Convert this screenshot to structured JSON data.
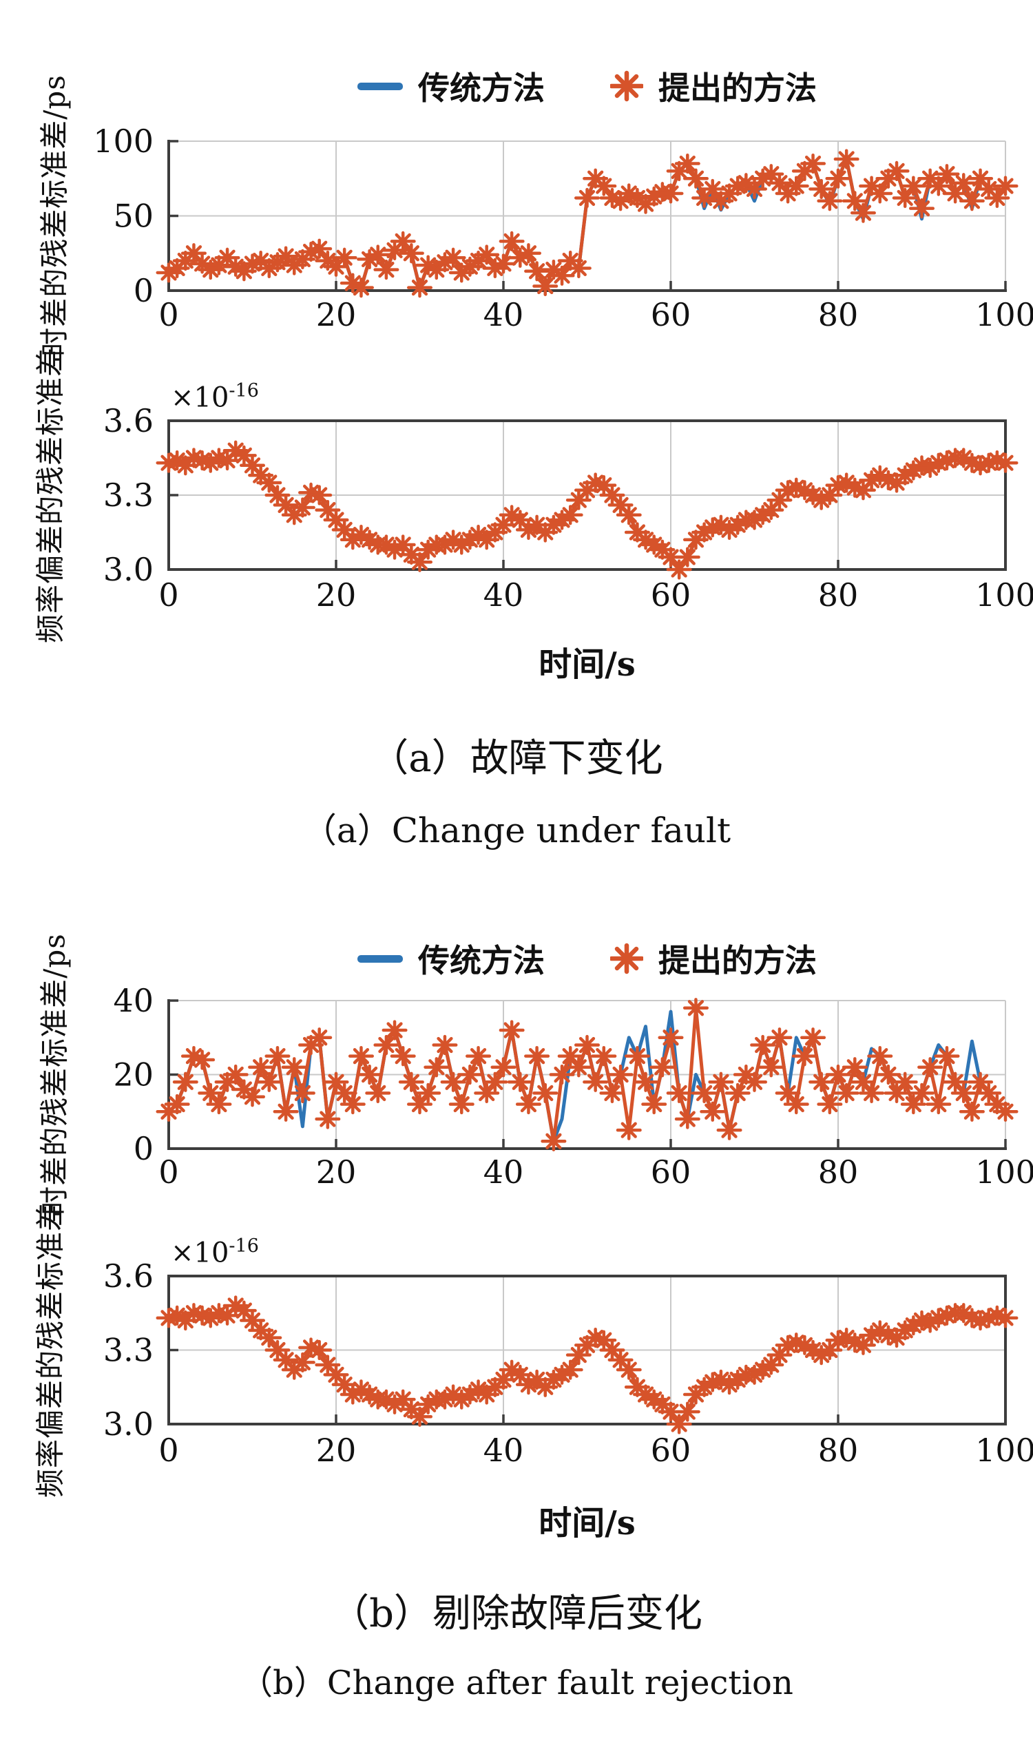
{
  "colors": {
    "traditional": "#2e75b5",
    "proposed": "#d6532a",
    "axis": "#3d3d3d",
    "grid": "#c9c9c9",
    "text": "#111111",
    "background": "#ffffff"
  },
  "legend": {
    "position": "top-center",
    "items": [
      {
        "label": "传统方法",
        "marker": "line"
      },
      {
        "label": "提出的方法",
        "marker": "asterisk"
      }
    ]
  },
  "figure_a": {
    "xlabel": "时间/s",
    "caption_zh": "（a）故障下变化",
    "caption_en": "（a）Change under fault"
  },
  "figure_b": {
    "xlabel": "时间/s",
    "caption_zh": "（b）剔除故障后变化",
    "caption_en": "（b）Change after fault rejection"
  },
  "chart_data": [
    {
      "type": "line",
      "figure": "a",
      "title": "",
      "xlabel": "时间/s",
      "ylabel": "时差的残差标准差/ps",
      "xlim": [
        0,
        100
      ],
      "ylim": [
        0,
        100
      ],
      "xticks": [
        0,
        20,
        40,
        60,
        80,
        100
      ],
      "xtick_labels": [
        "0",
        "20",
        "40",
        "60",
        "80",
        "100"
      ],
      "yticks": [
        0,
        50,
        100
      ],
      "ytick_labels": [
        "0",
        "50",
        "100"
      ],
      "grid": true,
      "x_start": 0,
      "x_step": 1,
      "layout": {
        "box_top": 35,
        "box_bottom": 252,
        "xlabel_row_y": 303,
        "spines": "lb",
        "xgrid": [
          20,
          40,
          60,
          80,
          100
        ],
        "ygrid": [
          50,
          100
        ]
      },
      "series": [
        {
          "name": "传统方法",
          "style": "line",
          "color_key": "traditional",
          "values": [
            12,
            15,
            20,
            25,
            18,
            14,
            17,
            22,
            16,
            13,
            18,
            20,
            15,
            19,
            23,
            17,
            21,
            26,
            28,
            20,
            16,
            22,
            5,
            2,
            21,
            24,
            14,
            27,
            33,
            25,
            2,
            17,
            14,
            19,
            22,
            12,
            16,
            20,
            24,
            15,
            18,
            33,
            22,
            25,
            13,
            3,
            14,
            10,
            20,
            15,
            62,
            75,
            70,
            62,
            60,
            65,
            62,
            58,
            63,
            66,
            65,
            80,
            85,
            75,
            55,
            68,
            54,
            65,
            70,
            72,
            60,
            75,
            78,
            72,
            65,
            70,
            80,
            85,
            68,
            58,
            75,
            88,
            60,
            48,
            70,
            65,
            75,
            80,
            62,
            70,
            48,
            75,
            70,
            78,
            65,
            72,
            55,
            75,
            68,
            62,
            70
          ]
        },
        {
          "name": "提出的方法",
          "style": "line+asterisk",
          "color_key": "proposed",
          "values": [
            12,
            15,
            20,
            25,
            18,
            14,
            17,
            22,
            16,
            13,
            18,
            20,
            15,
            19,
            23,
            17,
            21,
            26,
            28,
            20,
            16,
            22,
            5,
            2,
            21,
            24,
            14,
            27,
            33,
            25,
            2,
            17,
            14,
            19,
            22,
            12,
            16,
            20,
            24,
            15,
            18,
            33,
            22,
            25,
            13,
            3,
            14,
            10,
            20,
            15,
            62,
            75,
            70,
            62,
            60,
            65,
            62,
            58,
            63,
            66,
            65,
            80,
            85,
            75,
            62,
            68,
            60,
            65,
            70,
            72,
            68,
            75,
            78,
            72,
            65,
            70,
            80,
            85,
            68,
            60,
            75,
            88,
            60,
            52,
            70,
            65,
            75,
            80,
            62,
            70,
            55,
            75,
            70,
            78,
            65,
            72,
            60,
            75,
            68,
            62,
            70
          ]
        }
      ]
    },
    {
      "type": "line",
      "figure": "a",
      "title": "",
      "xlabel": "时间/s",
      "ylabel": "频率偏差的残差标准差",
      "scale_base": "×10",
      "scale_exp": "-16",
      "xlim": [
        0,
        100
      ],
      "ylim": [
        3.0,
        3.6
      ],
      "xticks": [
        0,
        20,
        40,
        60,
        80,
        100
      ],
      "xtick_labels": [
        "0",
        "20",
        "40",
        "60",
        "80",
        "100"
      ],
      "yticks": [
        3.0,
        3.3,
        3.6
      ],
      "ytick_labels": [
        "3.0",
        "3.3",
        "3.6"
      ],
      "grid": true,
      "x_start": 0,
      "x_step": 1,
      "layout": {
        "box_top": 61,
        "box_bottom": 277,
        "xlabel_row_y": 330,
        "spines": "box",
        "xgrid": [
          20,
          40,
          60,
          80
        ],
        "ygrid": [
          3.3
        ]
      },
      "series": [
        {
          "name": "传统方法",
          "style": "line",
          "color_key": "traditional",
          "values": [
            3.43,
            3.44,
            3.42,
            3.45,
            3.44,
            3.43,
            3.45,
            3.44,
            3.48,
            3.46,
            3.42,
            3.38,
            3.35,
            3.3,
            3.26,
            3.22,
            3.25,
            3.31,
            3.3,
            3.24,
            3.2,
            3.16,
            3.12,
            3.14,
            3.12,
            3.1,
            3.1,
            3.08,
            3.1,
            3.06,
            3.03,
            3.08,
            3.1,
            3.1,
            3.12,
            3.1,
            3.12,
            3.14,
            3.12,
            3.15,
            3.18,
            3.22,
            3.2,
            3.16,
            3.18,
            3.15,
            3.18,
            3.2,
            3.22,
            3.28,
            3.32,
            3.35,
            3.34,
            3.3,
            3.26,
            3.22,
            3.15,
            3.12,
            3.1,
            3.08,
            3.05,
            3.0,
            3.05,
            3.12,
            3.15,
            3.17,
            3.18,
            3.16,
            3.18,
            3.2,
            3.2,
            3.22,
            3.24,
            3.28,
            3.32,
            3.33,
            3.32,
            3.3,
            3.28,
            3.3,
            3.34,
            3.35,
            3.33,
            3.32,
            3.36,
            3.38,
            3.36,
            3.35,
            3.38,
            3.4,
            3.42,
            3.41,
            3.43,
            3.44,
            3.45,
            3.45,
            3.43,
            3.42,
            3.43,
            3.44,
            3.43
          ]
        },
        {
          "name": "提出的方法",
          "style": "line+asterisk",
          "color_key": "proposed",
          "values": [
            3.43,
            3.44,
            3.42,
            3.45,
            3.44,
            3.43,
            3.45,
            3.44,
            3.48,
            3.46,
            3.42,
            3.38,
            3.35,
            3.3,
            3.26,
            3.22,
            3.25,
            3.31,
            3.3,
            3.24,
            3.2,
            3.16,
            3.12,
            3.14,
            3.12,
            3.1,
            3.1,
            3.08,
            3.1,
            3.06,
            3.03,
            3.08,
            3.1,
            3.1,
            3.12,
            3.1,
            3.12,
            3.14,
            3.12,
            3.15,
            3.18,
            3.22,
            3.2,
            3.16,
            3.18,
            3.15,
            3.18,
            3.2,
            3.22,
            3.28,
            3.32,
            3.35,
            3.34,
            3.3,
            3.26,
            3.22,
            3.15,
            3.12,
            3.1,
            3.08,
            3.05,
            3.0,
            3.05,
            3.12,
            3.15,
            3.17,
            3.18,
            3.16,
            3.18,
            3.2,
            3.2,
            3.22,
            3.24,
            3.28,
            3.32,
            3.33,
            3.32,
            3.3,
            3.28,
            3.3,
            3.34,
            3.35,
            3.33,
            3.32,
            3.36,
            3.38,
            3.36,
            3.35,
            3.38,
            3.4,
            3.42,
            3.41,
            3.43,
            3.44,
            3.45,
            3.45,
            3.43,
            3.42,
            3.43,
            3.44,
            3.43
          ]
        }
      ]
    },
    {
      "type": "line",
      "figure": "b",
      "title": "",
      "xlabel": "时间/s",
      "ylabel": "时差的残差标准差/ps",
      "xlim": [
        0,
        100
      ],
      "ylim": [
        0,
        40
      ],
      "xticks": [
        0,
        20,
        40,
        60,
        80,
        100
      ],
      "xtick_labels": [
        "0",
        "20",
        "40",
        "60",
        "80",
        "100"
      ],
      "yticks": [
        0,
        20,
        40
      ],
      "ytick_labels": [
        "0",
        "20",
        "40"
      ],
      "grid": true,
      "x_start": 0,
      "x_step": 1,
      "layout": {
        "box_top": 35,
        "box_bottom": 250,
        "xlabel_row_y": 300,
        "spines": "lb",
        "xgrid": [
          20,
          40,
          60,
          80,
          100
        ],
        "ygrid": [
          20,
          40
        ]
      },
      "series": [
        {
          "name": "传统方法",
          "style": "line",
          "color_key": "traditional",
          "values": [
            10,
            12,
            18,
            25,
            24,
            15,
            12,
            18,
            20,
            16,
            14,
            22,
            18,
            25,
            10,
            22,
            6,
            28,
            30,
            8,
            18,
            15,
            12,
            25,
            20,
            15,
            28,
            32,
            25,
            18,
            12,
            15,
            22,
            28,
            18,
            12,
            20,
            25,
            15,
            18,
            22,
            32,
            18,
            12,
            25,
            15,
            2,
            8,
            25,
            22,
            28,
            18,
            25,
            15,
            20,
            30,
            25,
            33,
            12,
            22,
            37,
            15,
            8,
            20,
            15,
            10,
            18,
            5,
            15,
            20,
            18,
            28,
            22,
            30,
            15,
            30,
            25,
            30,
            18,
            12,
            20,
            15,
            22,
            18,
            27,
            25,
            20,
            15,
            18,
            12,
            15,
            22,
            28,
            25,
            18,
            15,
            29,
            18,
            15,
            12,
            10
          ]
        },
        {
          "name": "提出的方法",
          "style": "line+asterisk",
          "color_key": "proposed",
          "values": [
            10,
            12,
            18,
            25,
            24,
            15,
            12,
            18,
            20,
            16,
            14,
            22,
            18,
            25,
            10,
            22,
            15,
            28,
            30,
            8,
            18,
            15,
            12,
            25,
            20,
            15,
            28,
            32,
            25,
            18,
            12,
            15,
            22,
            28,
            18,
            12,
            20,
            25,
            15,
            18,
            22,
            32,
            18,
            12,
            25,
            15,
            2,
            20,
            25,
            22,
            28,
            18,
            25,
            15,
            20,
            5,
            25,
            18,
            12,
            22,
            30,
            15,
            8,
            38,
            15,
            10,
            18,
            5,
            15,
            20,
            18,
            28,
            22,
            30,
            15,
            12,
            25,
            30,
            18,
            12,
            20,
            15,
            22,
            18,
            15,
            25,
            20,
            15,
            18,
            12,
            15,
            22,
            12,
            25,
            18,
            15,
            10,
            18,
            15,
            12,
            10
          ]
        }
      ]
    },
    {
      "type": "line",
      "figure": "b",
      "title": "",
      "xlabel": "时间/s",
      "ylabel": "频率偏差的残差标准差",
      "scale_base": "×10",
      "scale_exp": "-16",
      "xlim": [
        0,
        100
      ],
      "ylim": [
        3.0,
        3.6
      ],
      "xticks": [
        0,
        20,
        40,
        60,
        80,
        100
      ],
      "xtick_labels": [
        "0",
        "20",
        "40",
        "60",
        "80",
        "100"
      ],
      "yticks": [
        3.0,
        3.3,
        3.6
      ],
      "ytick_labels": [
        "3.0",
        "3.3",
        "3.6"
      ],
      "grid": true,
      "x_start": 0,
      "x_step": 1,
      "layout": {
        "box_top": 61,
        "box_bottom": 276,
        "xlabel_row_y": 330,
        "spines": "box",
        "xgrid": [
          20,
          40,
          60,
          80
        ],
        "ygrid": [
          3.3
        ]
      },
      "series": [
        {
          "name": "传统方法",
          "style": "line",
          "color_key": "traditional",
          "values": [
            3.43,
            3.44,
            3.42,
            3.45,
            3.44,
            3.43,
            3.45,
            3.44,
            3.48,
            3.46,
            3.42,
            3.38,
            3.35,
            3.3,
            3.26,
            3.22,
            3.25,
            3.31,
            3.3,
            3.24,
            3.2,
            3.16,
            3.12,
            3.14,
            3.12,
            3.1,
            3.1,
            3.08,
            3.1,
            3.06,
            3.03,
            3.08,
            3.1,
            3.1,
            3.12,
            3.1,
            3.12,
            3.14,
            3.12,
            3.15,
            3.18,
            3.22,
            3.2,
            3.16,
            3.18,
            3.15,
            3.18,
            3.2,
            3.22,
            3.28,
            3.32,
            3.35,
            3.34,
            3.3,
            3.26,
            3.22,
            3.15,
            3.12,
            3.1,
            3.08,
            3.05,
            3.0,
            3.05,
            3.12,
            3.15,
            3.17,
            3.18,
            3.16,
            3.18,
            3.2,
            3.2,
            3.22,
            3.24,
            3.28,
            3.32,
            3.33,
            3.32,
            3.3,
            3.28,
            3.3,
            3.34,
            3.35,
            3.33,
            3.32,
            3.36,
            3.38,
            3.36,
            3.35,
            3.38,
            3.4,
            3.42,
            3.41,
            3.43,
            3.44,
            3.45,
            3.45,
            3.43,
            3.42,
            3.43,
            3.44,
            3.43
          ]
        },
        {
          "name": "提出的方法",
          "style": "line+asterisk",
          "color_key": "proposed",
          "values": [
            3.43,
            3.44,
            3.42,
            3.45,
            3.44,
            3.43,
            3.45,
            3.44,
            3.48,
            3.46,
            3.42,
            3.38,
            3.35,
            3.3,
            3.26,
            3.22,
            3.25,
            3.31,
            3.3,
            3.24,
            3.2,
            3.16,
            3.12,
            3.14,
            3.12,
            3.1,
            3.1,
            3.08,
            3.1,
            3.06,
            3.03,
            3.08,
            3.1,
            3.1,
            3.12,
            3.1,
            3.12,
            3.14,
            3.12,
            3.15,
            3.18,
            3.22,
            3.2,
            3.16,
            3.18,
            3.15,
            3.18,
            3.2,
            3.22,
            3.28,
            3.32,
            3.35,
            3.34,
            3.3,
            3.26,
            3.22,
            3.15,
            3.12,
            3.1,
            3.08,
            3.05,
            3.0,
            3.05,
            3.12,
            3.15,
            3.17,
            3.18,
            3.16,
            3.18,
            3.2,
            3.2,
            3.22,
            3.24,
            3.28,
            3.32,
            3.33,
            3.32,
            3.3,
            3.28,
            3.3,
            3.34,
            3.35,
            3.33,
            3.32,
            3.36,
            3.38,
            3.36,
            3.35,
            3.38,
            3.4,
            3.42,
            3.41,
            3.43,
            3.44,
            3.45,
            3.45,
            3.43,
            3.42,
            3.43,
            3.44,
            3.43
          ]
        }
      ]
    }
  ]
}
